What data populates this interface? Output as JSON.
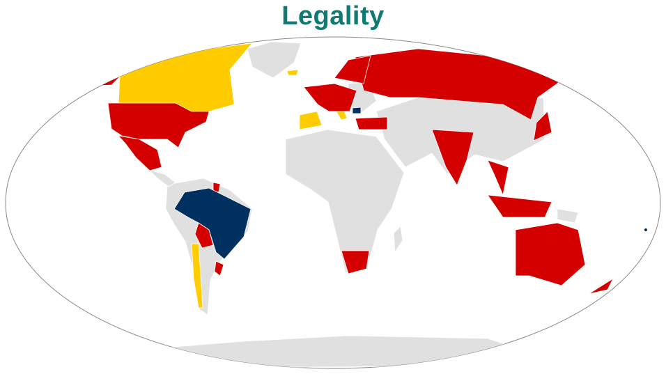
{
  "title": "Legality",
  "colors": {
    "title": "#0e7a72",
    "red": "#d40000",
    "yellow": "#ffcc00",
    "navy": "#00305f",
    "no_data_gray": "#e0e0e0",
    "frame": "#888888"
  }
}
